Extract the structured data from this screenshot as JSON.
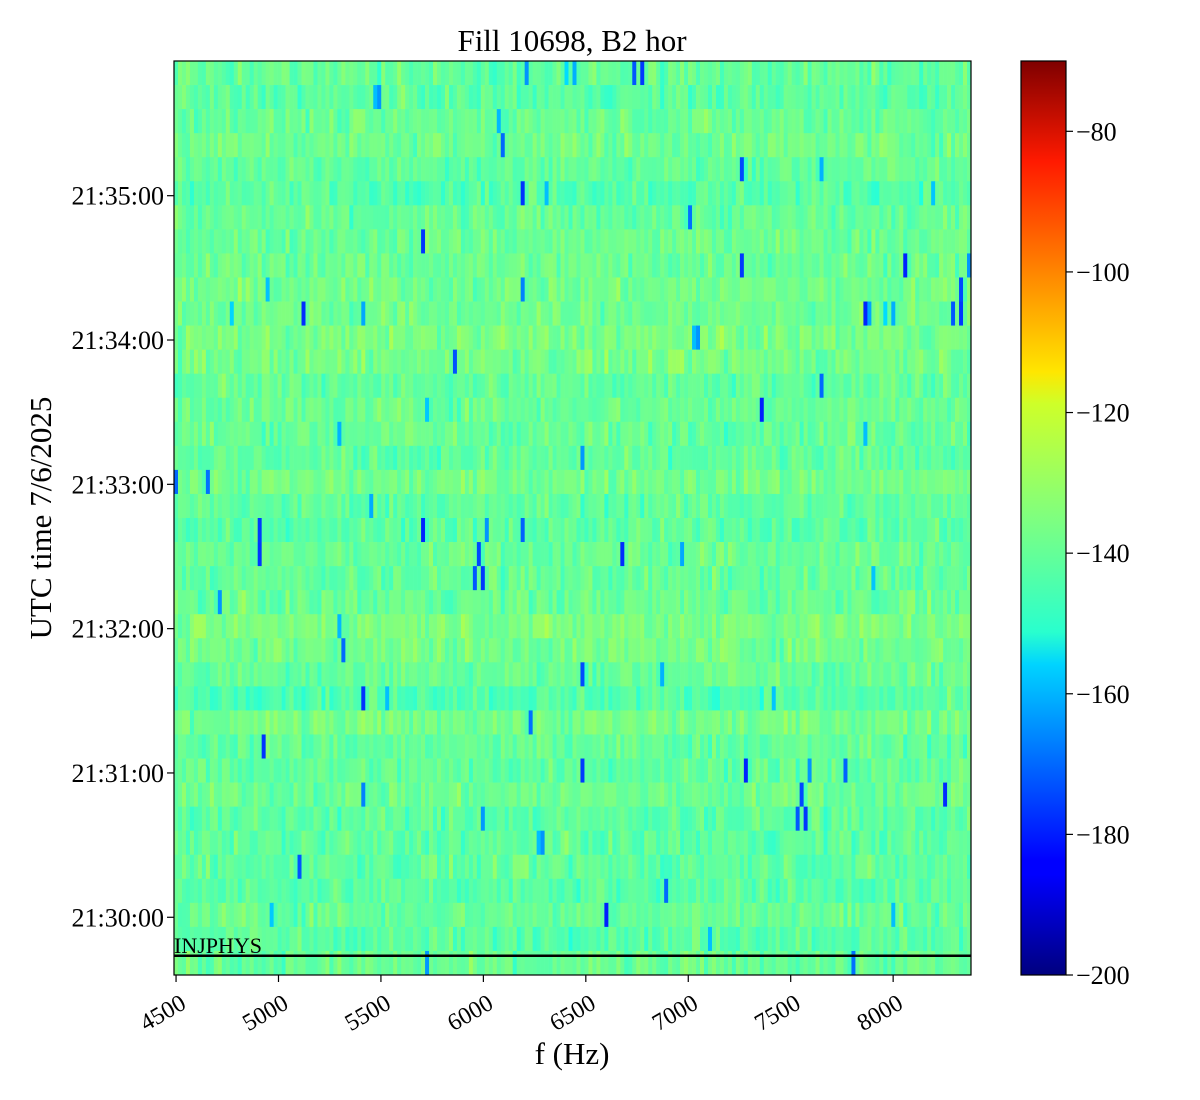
{
  "chart_data": {
    "type": "heatmap",
    "title": "Fill 10698, B2 hor",
    "xlabel": "f (Hz)",
    "ylabel": "UTC time 7/6/2025",
    "xlim": [
      4490,
      8380
    ],
    "x_ticks": [
      4500,
      5000,
      5500,
      6000,
      6500,
      7000,
      7500,
      8000
    ],
    "x_tick_labels": [
      "4500",
      "5000",
      "5500",
      "6000",
      "6500",
      "7000",
      "7500",
      "8000"
    ],
    "y_range_label": [
      "21:29:36",
      "21:35:56"
    ],
    "y_ticks": [
      "21:30:00",
      "21:31:00",
      "21:32:00",
      "21:33:00",
      "21:34:00",
      "21:35:00"
    ],
    "colorbar": {
      "colormap": "jet",
      "vmin": -200,
      "vmax": -70,
      "ticks": [
        -80,
        -100,
        -120,
        -140,
        -160,
        -180,
        -200
      ],
      "tick_labels": [
        "−80",
        "−100",
        "−120",
        "−140",
        "−160",
        "−180",
        "−200"
      ]
    },
    "typical_value": -138,
    "value_spread": 6,
    "occasional_dropouts_min": -180,
    "annotations": [
      {
        "text": "INJPHYS",
        "time": "21:29:44",
        "kind": "horizontal-line"
      }
    ]
  }
}
